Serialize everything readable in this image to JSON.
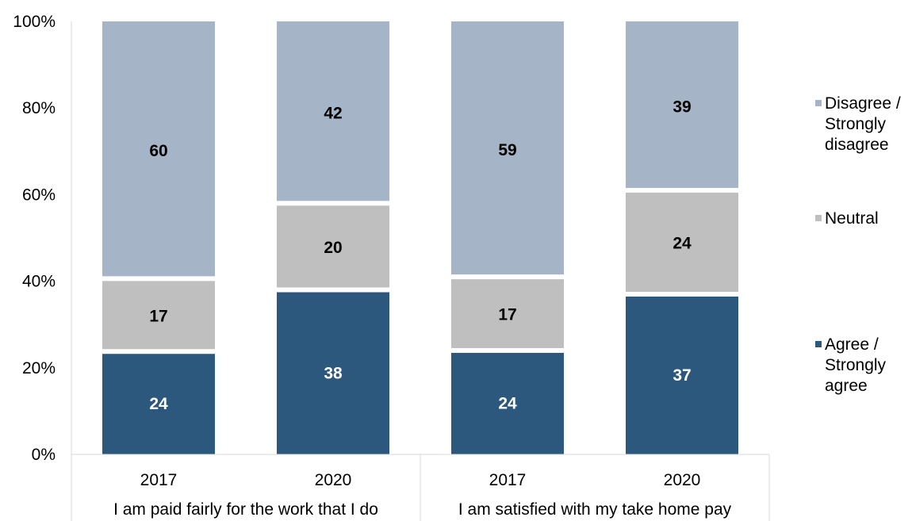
{
  "chart_data": {
    "type": "bar",
    "stacked": true,
    "percent": true,
    "groups": [
      "I am paid fairly for the work that I do",
      "I am satisfied with my take home pay"
    ],
    "categories": [
      "2017",
      "2020",
      "2017",
      "2020"
    ],
    "category_group": [
      0,
      0,
      1,
      1
    ],
    "series": [
      {
        "name": "Agree / Strongly agree",
        "legend_lines": [
          "Agree /",
          "Strongly",
          "agree"
        ],
        "color": "#2b587c",
        "label_color": "#ffffff",
        "values": [
          24,
          38,
          24,
          37
        ]
      },
      {
        "name": "Neutral",
        "legend_lines": [
          "Neutral"
        ],
        "color": "#bfbfbf",
        "label_color": "#000000",
        "values": [
          17,
          20,
          17,
          24
        ]
      },
      {
        "name": "Disagree / Strongly disagree",
        "legend_lines": [
          "Disagree /",
          "Strongly",
          "disagree"
        ],
        "color": "#a6b4c7",
        "label_color": "#000000",
        "values": [
          60,
          42,
          59,
          39
        ]
      }
    ],
    "y_ticks": [
      "0%",
      "20%",
      "40%",
      "60%",
      "80%",
      "100%"
    ],
    "ylim": [
      0,
      100
    ],
    "legend": "right",
    "grid": false
  }
}
